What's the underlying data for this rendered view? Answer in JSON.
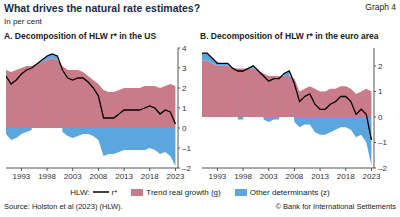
{
  "header": {
    "title": "What drives the natural rate estimates?",
    "graph_label": "Graph 4",
    "subtitle": "In per cent"
  },
  "legend_label": "HLW:",
  "source": "Source: Holston et al (2023) (HLW).",
  "copyright": "© Bank for International Settlements",
  "chart_data": [
    {
      "type": "area",
      "stacked": true,
      "title": "A. Decomposition of HLW r* in the US",
      "x": [
        1990,
        1991,
        1992,
        1993,
        1994,
        1995,
        1996,
        1997,
        1998,
        1999,
        2000,
        2001,
        2002,
        2003,
        2004,
        2005,
        2006,
        2007,
        2008,
        2009,
        2010,
        2011,
        2012,
        2013,
        2014,
        2015,
        2016,
        2017,
        2018,
        2019,
        2020,
        2021,
        2022,
        2023
      ],
      "xlim": [
        1990,
        2023.5
      ],
      "xticks": [
        1993,
        1998,
        2003,
        2008,
        2013,
        2018,
        2023
      ],
      "ylim": [
        -2,
        4
      ],
      "yticks": [
        {
          "value": -2,
          "label": "–2"
        },
        {
          "value": -1,
          "label": "–1"
        },
        0,
        1,
        2,
        3,
        4
      ],
      "series": [
        {
          "name": "Trend real growth (g)",
          "type": "area",
          "color": "#c97b89",
          "values": [
            2.9,
            2.8,
            2.9,
            3.0,
            3.1,
            3.1,
            3.2,
            3.3,
            3.4,
            3.5,
            3.4,
            3.1,
            2.9,
            2.9,
            2.9,
            2.8,
            2.6,
            2.4,
            2.2,
            1.9,
            1.8,
            1.8,
            1.9,
            2.0,
            2.0,
            2.0,
            2.0,
            2.1,
            2.1,
            2.1,
            2.0,
            2.1,
            2.2,
            2.1
          ]
        },
        {
          "name": "Other determinants (z)",
          "type": "area",
          "color": "#5ba7dd",
          "values": [
            -0.3,
            -0.6,
            -0.5,
            -0.3,
            -0.2,
            -0.1,
            0.0,
            0.1,
            0.2,
            0.2,
            0.2,
            -0.2,
            -0.4,
            -0.5,
            -0.4,
            -0.3,
            -0.3,
            -0.4,
            -0.6,
            -1.4,
            -1.3,
            -1.3,
            -1.2,
            -1.1,
            -1.1,
            -1.1,
            -1.1,
            -1.1,
            -1.0,
            -1.1,
            -1.3,
            -1.2,
            -1.4,
            -1.9
          ]
        },
        {
          "name": "r*",
          "type": "line",
          "color": "#000000",
          "values": [
            2.6,
            2.2,
            2.4,
            2.7,
            2.9,
            3.0,
            3.2,
            3.4,
            3.6,
            3.7,
            3.6,
            2.9,
            2.5,
            2.4,
            2.5,
            2.5,
            2.3,
            2.0,
            1.6,
            0.5,
            0.5,
            0.5,
            0.7,
            0.9,
            0.9,
            0.9,
            0.9,
            1.0,
            1.1,
            1.0,
            0.7,
            0.9,
            0.8,
            0.2
          ]
        }
      ]
    },
    {
      "type": "area",
      "stacked": true,
      "title": "B. Decomposition of HLW r* in the euro area",
      "x": [
        1990,
        1991,
        1992,
        1993,
        1994,
        1995,
        1996,
        1997,
        1998,
        1999,
        2000,
        2001,
        2002,
        2003,
        2004,
        2005,
        2006,
        2007,
        2008,
        2009,
        2010,
        2011,
        2012,
        2013,
        2014,
        2015,
        2016,
        2017,
        2018,
        2019,
        2020,
        2021,
        2022,
        2023
      ],
      "xlim": [
        1990,
        2023.5
      ],
      "xticks": [
        1993,
        1998,
        2003,
        2008,
        2013,
        2018,
        2023
      ],
      "ylim": [
        -2,
        2.7
      ],
      "yticks": [
        {
          "value": -2,
          "label": "–2"
        },
        {
          "value": -1,
          "label": "–1"
        },
        0,
        1,
        2
      ],
      "series": [
        {
          "name": "Trend real growth (g)",
          "type": "area",
          "color": "#c97b89",
          "values": [
            2.2,
            2.2,
            2.1,
            2.0,
            2.0,
            2.0,
            1.9,
            1.9,
            1.9,
            1.9,
            1.9,
            1.8,
            1.7,
            1.6,
            1.6,
            1.6,
            1.6,
            1.6,
            1.5,
            1.0,
            1.1,
            1.2,
            1.1,
            1.0,
            1.0,
            1.1,
            1.1,
            1.2,
            1.2,
            1.1,
            0.9,
            1.0,
            1.1,
            1.0
          ]
        },
        {
          "name": "Other determinants (z)",
          "type": "area",
          "color": "#5ba7dd",
          "values": [
            0.3,
            0.3,
            0.2,
            0.1,
            0.1,
            0.1,
            0.0,
            -0.1,
            -0.1,
            0.0,
            0.1,
            0.0,
            -0.1,
            -0.2,
            -0.1,
            -0.1,
            0.1,
            0.2,
            -0.2,
            -0.4,
            -0.3,
            -0.3,
            -0.6,
            -0.7,
            -0.7,
            -0.6,
            -0.5,
            -0.4,
            -0.4,
            -0.5,
            -0.8,
            -0.7,
            -1.0,
            -1.9
          ]
        },
        {
          "name": "r*",
          "type": "line",
          "color": "#000000",
          "values": [
            2.5,
            2.5,
            2.3,
            2.1,
            2.1,
            2.1,
            1.9,
            1.8,
            1.8,
            1.9,
            2.0,
            1.8,
            1.6,
            1.4,
            1.5,
            1.5,
            1.7,
            1.8,
            1.3,
            0.6,
            0.8,
            0.9,
            0.5,
            0.3,
            0.3,
            0.5,
            0.6,
            0.8,
            0.8,
            0.6,
            0.1,
            0.3,
            0.1,
            -0.9
          ]
        }
      ]
    }
  ]
}
